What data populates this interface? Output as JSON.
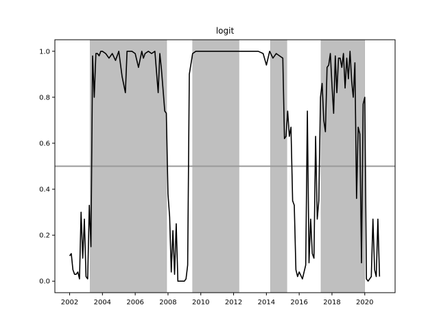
{
  "chart_data": {
    "type": "line",
    "title": "logit",
    "xlabel": "",
    "ylabel": "",
    "xlim": [
      2001.1,
      2021.85
    ],
    "ylim": [
      -0.05,
      1.05
    ],
    "x_ticks": [
      2002,
      2004,
      2006,
      2008,
      2010,
      2012,
      2014,
      2016,
      2018,
      2020
    ],
    "x_tick_labels": [
      "2002",
      "2004",
      "2006",
      "2008",
      "2010",
      "2012",
      "2014",
      "2016",
      "2018",
      "2020"
    ],
    "y_ticks": [
      0.0,
      0.2,
      0.4,
      0.6,
      0.8,
      1.0
    ],
    "y_tick_labels": [
      "0.0",
      "0.2",
      "0.4",
      "0.6",
      "0.8",
      "1.0"
    ],
    "threshold": 0.5,
    "shaded_periods": [
      [
        2003.25,
        2007.92
      ],
      [
        2009.5,
        2012.33
      ],
      [
        2014.25,
        2015.25
      ],
      [
        2017.33,
        2020.0
      ]
    ],
    "colors": {
      "line": "#000000",
      "threshold": "#999999",
      "shade": "#bfbfbf",
      "axis": "#000000"
    },
    "grid": false,
    "series": [
      {
        "x": [
          2002.0,
          2002.1,
          2002.2,
          2002.3,
          2002.4,
          2002.5,
          2002.6,
          2002.7,
          2002.8,
          2002.9,
          2003.0,
          2003.1,
          2003.2,
          2003.3,
          2003.4,
          2003.5,
          2003.6,
          2003.7,
          2003.8,
          2003.9,
          2004.0,
          2004.2,
          2004.4,
          2004.6,
          2004.8,
          2005.0,
          2005.2,
          2005.4,
          2005.5,
          2005.6,
          2005.8,
          2006.0,
          2006.2,
          2006.4,
          2006.5,
          2006.6,
          2006.8,
          2007.0,
          2007.2,
          2007.4,
          2007.5,
          2007.6,
          2007.8,
          2007.9,
          2008.0,
          2008.1,
          2008.2,
          2008.3,
          2008.4,
          2008.5,
          2008.6,
          2008.7,
          2009.0,
          2009.1,
          2009.2,
          2009.3,
          2009.5,
          2009.7,
          2010.0,
          2010.5,
          2011.0,
          2012.0,
          2013.0,
          2013.5,
          2013.8,
          2014.0,
          2014.2,
          2014.4,
          2014.6,
          2014.8,
          2015.0,
          2015.1,
          2015.2,
          2015.3,
          2015.4,
          2015.5,
          2015.6,
          2015.7,
          2015.8,
          2015.9,
          2016.0,
          2016.2,
          2016.4,
          2016.5,
          2016.6,
          2016.7,
          2016.8,
          2016.9,
          2017.0,
          2017.1,
          2017.2,
          2017.3,
          2017.4,
          2017.5,
          2017.6,
          2017.7,
          2017.8,
          2017.9,
          2018.0,
          2018.1,
          2018.2,
          2018.3,
          2018.4,
          2018.5,
          2018.6,
          2018.7,
          2018.8,
          2018.9,
          2019.0,
          2019.1,
          2019.2,
          2019.3,
          2019.4,
          2019.5,
          2019.6,
          2019.7,
          2019.8,
          2019.9,
          2020.0,
          2020.1,
          2020.2,
          2020.3,
          2020.4,
          2020.5,
          2020.6,
          2020.7,
          2020.8,
          2020.9
        ],
        "y": [
          0.11,
          0.12,
          0.05,
          0.03,
          0.03,
          0.04,
          0.01,
          0.3,
          0.1,
          0.27,
          0.02,
          0.01,
          0.33,
          0.15,
          0.98,
          0.8,
          0.99,
          0.99,
          0.98,
          1.0,
          1.0,
          0.99,
          0.97,
          0.99,
          0.96,
          1.0,
          0.89,
          0.82,
          1.0,
          1.0,
          1.0,
          0.99,
          0.93,
          1.0,
          0.97,
          0.99,
          1.0,
          0.99,
          1.0,
          0.82,
          0.99,
          0.92,
          0.74,
          0.73,
          0.38,
          0.28,
          0.04,
          0.22,
          0.03,
          0.25,
          0.0,
          0.0,
          0.0,
          0.01,
          0.07,
          0.9,
          0.99,
          1.0,
          1.0,
          1.0,
          1.0,
          1.0,
          1.0,
          1.0,
          0.99,
          0.94,
          1.0,
          0.97,
          0.99,
          0.98,
          0.97,
          0.62,
          0.63,
          0.74,
          0.63,
          0.67,
          0.35,
          0.33,
          0.05,
          0.02,
          0.04,
          0.01,
          0.07,
          0.74,
          0.08,
          0.27,
          0.12,
          0.1,
          0.63,
          0.27,
          0.35,
          0.8,
          0.86,
          0.7,
          0.65,
          0.93,
          0.94,
          0.99,
          0.85,
          0.73,
          0.98,
          0.82,
          0.97,
          0.97,
          0.93,
          0.99,
          0.84,
          0.97,
          0.88,
          1.0,
          0.87,
          0.8,
          0.95,
          0.36,
          0.67,
          0.64,
          0.08,
          0.77,
          0.8,
          0.01,
          0.0,
          0.01,
          0.02,
          0.27,
          0.05,
          0.02,
          0.27,
          0.02
        ]
      }
    ]
  }
}
